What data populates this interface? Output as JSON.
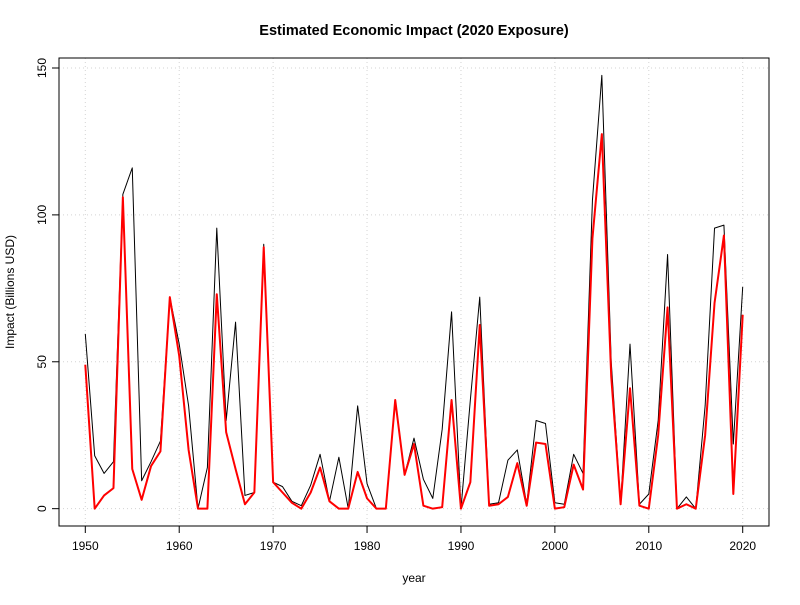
{
  "chart_data": {
    "type": "line",
    "title": "Estimated Economic Impact (2020 Exposure)",
    "xlabel": "year",
    "ylabel": "Impact (Billions USD)",
    "xlim": [
      1947.2,
      2022.8
    ],
    "ylim": [
      -5.9,
      153.4
    ],
    "xticks": [
      1950,
      1960,
      1970,
      1980,
      1990,
      2000,
      2010,
      2020
    ],
    "yticks": [
      0,
      50,
      100,
      150
    ],
    "grid": true,
    "x": [
      1950,
      1951,
      1952,
      1953,
      1954,
      1955,
      1956,
      1957,
      1958,
      1959,
      1960,
      1961,
      1962,
      1963,
      1964,
      1965,
      1966,
      1967,
      1968,
      1969,
      1970,
      1971,
      1972,
      1973,
      1974,
      1975,
      1976,
      1977,
      1978,
      1979,
      1980,
      1981,
      1982,
      1983,
      1984,
      1985,
      1986,
      1987,
      1988,
      1989,
      1990,
      1991,
      1992,
      1993,
      1994,
      1995,
      1996,
      1997,
      1998,
      1999,
      2000,
      2001,
      2002,
      2003,
      2004,
      2005,
      2006,
      2007,
      2008,
      2009,
      2010,
      2011,
      2012,
      2013,
      2014,
      2015,
      2016,
      2017,
      2018,
      2019,
      2020
    ],
    "series": [
      {
        "color": "#000000",
        "values": [
          59.5,
          18,
          12,
          16,
          107,
          116,
          9.5,
          16,
          23,
          72,
          56,
          35,
          0,
          14,
          95.5,
          30,
          63.5,
          4.5,
          5.5,
          90,
          9,
          7.5,
          2.5,
          1,
          8,
          18.5,
          2.5,
          17.5,
          0,
          35,
          8.5,
          0,
          0,
          37,
          11.5,
          24,
          10,
          3.5,
          27,
          67,
          0,
          37,
          72,
          1.5,
          2,
          16.5,
          20,
          1.5,
          30,
          29,
          2,
          1.5,
          18.5,
          12,
          105,
          147.5,
          50,
          1.5,
          56,
          1.5,
          5,
          30,
          86.5,
          0,
          4,
          0,
          35,
          95.5,
          96.5,
          22,
          75.5
        ]
      },
      {
        "color": "#ff0000",
        "values": [
          49,
          0,
          4.5,
          7,
          106,
          13.5,
          3,
          14.5,
          19.5,
          72,
          52,
          20,
          0,
          0,
          73,
          26,
          13.5,
          1.5,
          5.5,
          89,
          9,
          5.5,
          2,
          0,
          5.5,
          14,
          2.5,
          0,
          0,
          12.5,
          3.5,
          0,
          0,
          37,
          11.5,
          22,
          1,
          0,
          0.5,
          37,
          0,
          9,
          62.5,
          1,
          1.5,
          4,
          15.5,
          1,
          22.5,
          22,
          0,
          0.5,
          15,
          6.5,
          92,
          127.5,
          45,
          1.5,
          41,
          1,
          0,
          25,
          68.5,
          0,
          1.5,
          0,
          25,
          70,
          93,
          5,
          66
        ]
      }
    ]
  }
}
